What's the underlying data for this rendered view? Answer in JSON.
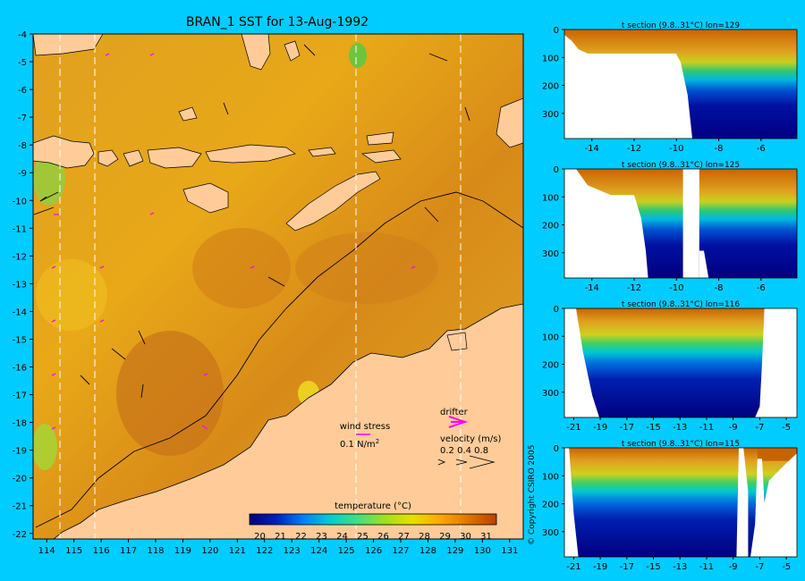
{
  "title": "BRAN_1 SST for 13-Aug-1992",
  "copyright": "© Copyright CSIRO 2005",
  "map": {
    "lat_ticks": [
      "-4",
      "-5",
      "-6",
      "-7",
      "-8",
      "-9",
      "-10",
      "-11",
      "-12",
      "-13",
      "-14",
      "-15",
      "-16",
      "-17",
      "-18",
      "-19",
      "-20",
      "-21",
      "-22"
    ],
    "lon_ticks": [
      "114",
      "115",
      "116",
      "117",
      "118",
      "119",
      "120",
      "121",
      "122",
      "123",
      "124",
      "125",
      "126",
      "127",
      "128",
      "129",
      "130",
      "131"
    ],
    "wind_stress_label": "wind stress",
    "wind_stress_unit": "0.1 N/m",
    "wind_stress_unit_sup": "2",
    "drifter_label": "drifter",
    "velocity_label": "velocity (m/s)",
    "velocity_values": "0.2 0.4 0.8",
    "section_longitudes": [
      114.5,
      115.8,
      125.4,
      129.2
    ]
  },
  "colorbar": {
    "title": "temperature (°C)",
    "ticks": [
      "20",
      "21",
      "22",
      "23",
      "24",
      "25",
      "26",
      "27",
      "28",
      "29",
      "30",
      "31"
    ]
  },
  "colors": {
    "background": "#00ccff",
    "land": "#ffcc99",
    "deep_cold": "#00007f",
    "warm": "#cc6600",
    "drifter": "#ff00ff"
  },
  "chart_data": [
    {
      "type": "heatmap",
      "title": "BRAN_1 SST for 13-Aug-1992",
      "xlim": [
        113.5,
        131.5
      ],
      "ylim": [
        -22.2,
        -4
      ],
      "colorbar_range": [
        20,
        31.5
      ],
      "dominant_values_C": {
        "open_ocean": 28,
        "banda_sea": 28.5,
        "nw_shelf_warm_core": 29.5,
        "western_edge": 25
      }
    },
    {
      "type": "heatmap",
      "title": "t section (9.8..31°C) lon=129",
      "x_ticks": [
        "-14",
        "-12",
        "-10",
        "-8",
        "-6"
      ],
      "y_ticks": [
        "0",
        "100",
        "200",
        "300"
      ],
      "xlim": [
        -15.3,
        -4.3
      ],
      "ylim": [
        390,
        0
      ]
    },
    {
      "type": "heatmap",
      "title": "t section (9.8..31°C) lon=125",
      "x_ticks": [
        "-14",
        "-12",
        "-10",
        "-8",
        "-6"
      ],
      "y_ticks": [
        "0",
        "100",
        "200",
        "300"
      ],
      "xlim": [
        -15.3,
        -4.3
      ],
      "ylim": [
        390,
        0
      ]
    },
    {
      "type": "heatmap",
      "title": "t section (9.8..31°C) lon=116",
      "x_ticks": [
        "-21",
        "-19",
        "-17",
        "-15",
        "-13",
        "-11",
        "-9",
        "-7",
        "-5"
      ],
      "y_ticks": [
        "0",
        "100",
        "200",
        "300"
      ],
      "xlim": [
        -21.7,
        -4.2
      ],
      "ylim": [
        390,
        0
      ]
    },
    {
      "type": "heatmap",
      "title": "t section (9.8..31°C) lon=115",
      "x_ticks": [
        "-21",
        "-19",
        "-17",
        "-15",
        "-13",
        "-11",
        "-9",
        "-7",
        "-5"
      ],
      "y_ticks": [
        "0",
        "100",
        "200",
        "300"
      ],
      "xlim": [
        -21.7,
        -4.2
      ],
      "ylim": [
        390,
        0
      ]
    }
  ]
}
